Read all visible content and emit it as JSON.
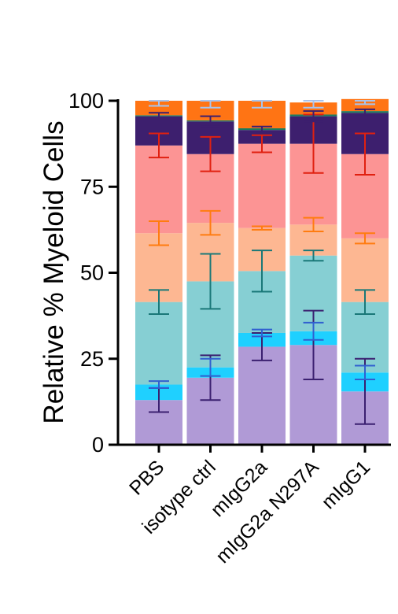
{
  "chart_data": {
    "type": "bar",
    "stacked": true,
    "categories": [
      "PBS",
      "isotype ctrl",
      "mIgG2a",
      "mIgG2a N297A",
      "mIgG1"
    ],
    "ylabel": "Relative %  Myeloid Cells",
    "ylim": [
      0,
      100
    ],
    "yticks": [
      0,
      25,
      50,
      75,
      100
    ],
    "grid": false,
    "legend": "none",
    "series": [
      {
        "color": "#b09ad6",
        "err": "#3b2070",
        "values": [
          13,
          19.5,
          28.5,
          29,
          15.5
        ],
        "errors": [
          3.5,
          6.5,
          4,
          10,
          9.5
        ]
      },
      {
        "color": "#1fd0ff",
        "err": "#3060d0",
        "values": [
          4.5,
          3,
          4,
          4,
          5.5
        ],
        "errors": [
          1,
          2.5,
          1,
          2.5,
          2
        ]
      },
      {
        "color": "#86cfd3",
        "err": "#1a7878",
        "values": [
          24,
          25,
          18,
          22,
          20.5
        ],
        "errors": [
          3.5,
          8,
          6,
          1.5,
          3.5
        ]
      },
      {
        "color": "#fdb792",
        "err": "#ff7c10",
        "values": [
          20,
          17,
          12.5,
          9,
          18.5
        ],
        "errors": [
          3.5,
          3.5,
          0.5,
          2,
          1.5
        ]
      },
      {
        "color": "#fc9494",
        "err": "#e02010",
        "values": [
          25.5,
          20,
          24.5,
          23.5,
          24.5
        ],
        "errors": [
          3.5,
          5,
          2.5,
          8.5,
          6
        ]
      },
      {
        "color": "#3d1f6e",
        "err": "#3d1f6e",
        "values": [
          8.5,
          9.5,
          4,
          8,
          12
        ],
        "errors": [
          1,
          1.5,
          1,
          1.5,
          1
        ]
      },
      {
        "color": "#1a7a5c",
        "err": "#1a7a5c",
        "values": [
          0.3,
          0.3,
          0.5,
          0.5,
          0.5
        ],
        "errors": [
          0,
          0,
          0,
          0,
          0
        ]
      },
      {
        "color": "#ff7414",
        "err": "#a9c4ec",
        "values": [
          4.2,
          5.7,
          8,
          3.5,
          3.5
        ],
        "errors": [
          1.5,
          2,
          2,
          1.5,
          1.5
        ]
      }
    ]
  }
}
